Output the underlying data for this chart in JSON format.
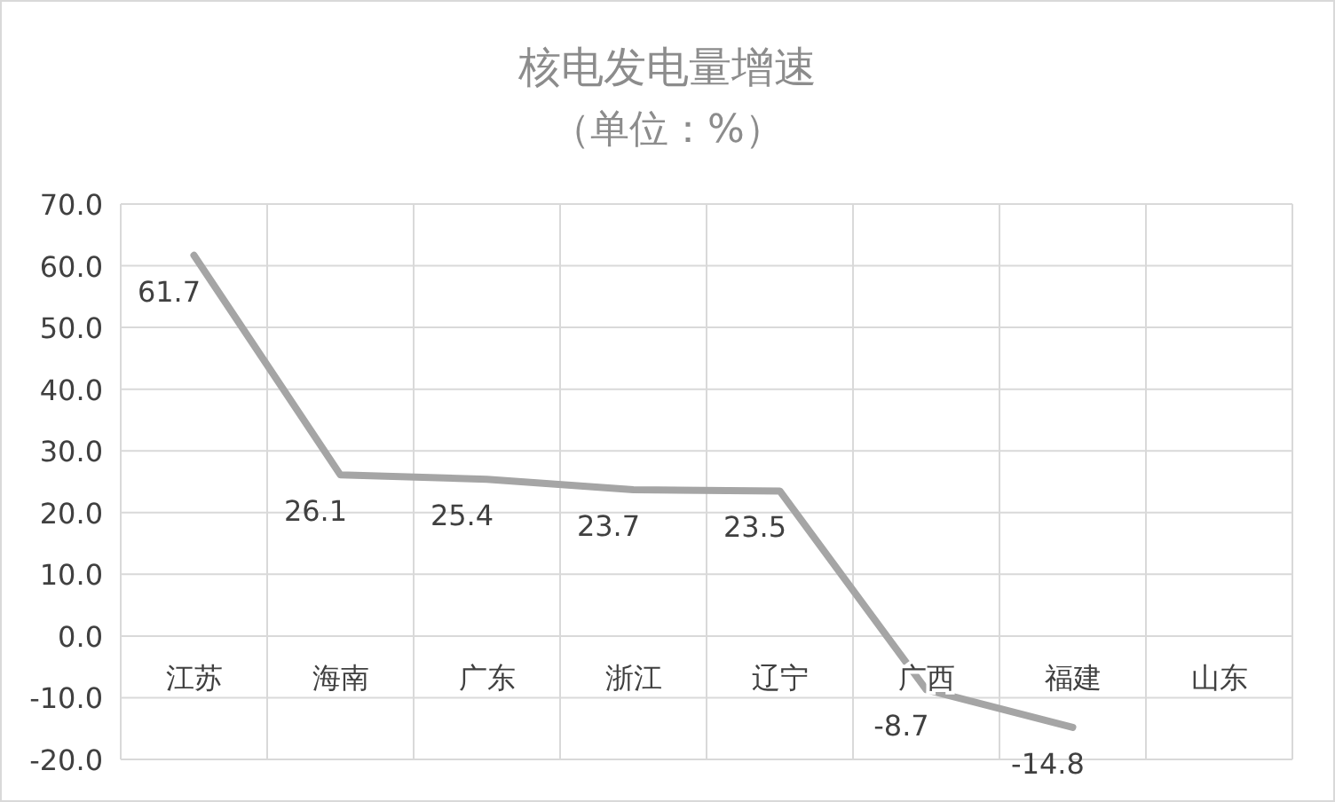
{
  "chart_data": {
    "type": "line",
    "title": "核电发电量增速",
    "subtitle": "（单位：%）",
    "categories": [
      "江苏",
      "海南",
      "广东",
      "浙江",
      "辽宁",
      "广西",
      "福建",
      "山东"
    ],
    "series": [
      {
        "color": "#a5a5a5",
        "values": [
          61.7,
          26.1,
          25.4,
          23.7,
          23.5,
          -8.7,
          -14.8,
          null
        ]
      }
    ],
    "ylim": [
      -20,
      70
    ],
    "yticks": [
      {
        "value": -20,
        "label": "-20.0"
      },
      {
        "value": -10,
        "label": "-10.0"
      },
      {
        "value": 0,
        "label": "0.0"
      },
      {
        "value": 10,
        "label": "10.0"
      },
      {
        "value": 20,
        "label": "20.0"
      },
      {
        "value": 30,
        "label": "30.0"
      },
      {
        "value": 40,
        "label": "40.0"
      },
      {
        "value": 50,
        "label": "50.0"
      },
      {
        "value": 60,
        "label": "60.0"
      },
      {
        "value": 70,
        "label": "70.0"
      }
    ],
    "grid": true,
    "data_labels": true,
    "marker": "none",
    "line_style": "solid"
  }
}
